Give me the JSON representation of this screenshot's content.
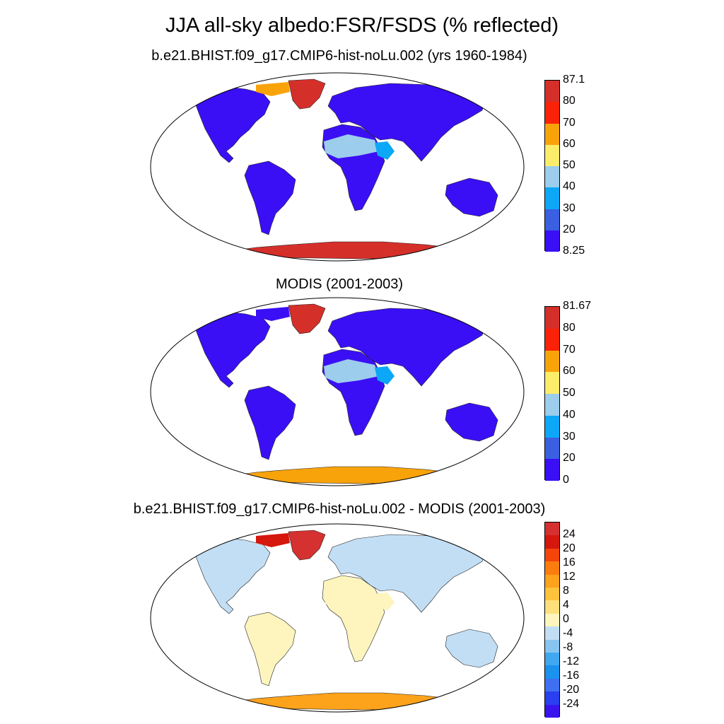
{
  "title": "JJA all-sky albedo:FSR/FSDS (% reflected)",
  "panels": [
    {
      "id": "model",
      "title": "b.e21.BHIST.f09_g17.CMIP6-hist-noLu.002 (yrs 1960-1984)",
      "colorbar": {
        "colors": [
          "#3b0ff5",
          "#3a5fe0",
          "#0ca8f7",
          "#9ccdec",
          "#fbec6a",
          "#f9a30a",
          "#fb2208",
          "#d52f2a"
        ],
        "labels": [
          "8.25",
          "20",
          "30",
          "40",
          "50",
          "60",
          "70",
          "80",
          "87.1"
        ]
      },
      "land_fill": {
        "default": "#3b0ff5",
        "greenland": "#d52f2a",
        "antarctica": "#d52f2a",
        "sahara": "#9ccdec",
        "arabia": "#0ca8f7",
        "arctic_fringe": "#f9a30a"
      }
    },
    {
      "id": "obs",
      "title": "MODIS (2001-2003)",
      "colorbar": {
        "colors": [
          "#3b0ff5",
          "#3a5fe0",
          "#0ca8f7",
          "#9ccdec",
          "#fbec6a",
          "#f9a30a",
          "#fb2208",
          "#d52f2a"
        ],
        "labels": [
          "0",
          "20",
          "30",
          "40",
          "50",
          "60",
          "70",
          "80",
          "81.67"
        ]
      },
      "land_fill": {
        "default": "#3b0ff5",
        "greenland": "#d52f2a",
        "antarctica": "#f9a30a",
        "sahara": "#9ccdec",
        "arabia": "#0ca8f7",
        "arctic_fringe": "#3b0ff5"
      }
    },
    {
      "id": "diff",
      "title": "b.e21.BHIST.f09_g17.CMIP6-hist-noLu.002 - MODIS (2001-2003)",
      "colorbar": {
        "colors": [
          "#3a14ee",
          "#2a3ff0",
          "#3f70f2",
          "#1a92ee",
          "#3fa8f0",
          "#88c4f0",
          "#c2def4",
          "#fdf5bd",
          "#fde07a",
          "#fdc33b",
          "#fda21b",
          "#fb7d0d",
          "#f4450b",
          "#d6170d",
          "#d53130"
        ],
        "labels": [
          "-24",
          "-20",
          "-16",
          "-12",
          "-8",
          "-4",
          "0",
          "4",
          "8",
          "12",
          "16",
          "20",
          "24"
        ]
      },
      "land_fill": {
        "default": "#fdf5bd",
        "greenland": "#d53130",
        "antarctica": "#fda21b",
        "sahara": "#fdf5bd",
        "arabia": "#fdf5bd",
        "eurasia": "#c2def4",
        "north_america": "#c2def4",
        "australia": "#c2def4",
        "arctic_fringe": "#d6170d"
      }
    }
  ]
}
